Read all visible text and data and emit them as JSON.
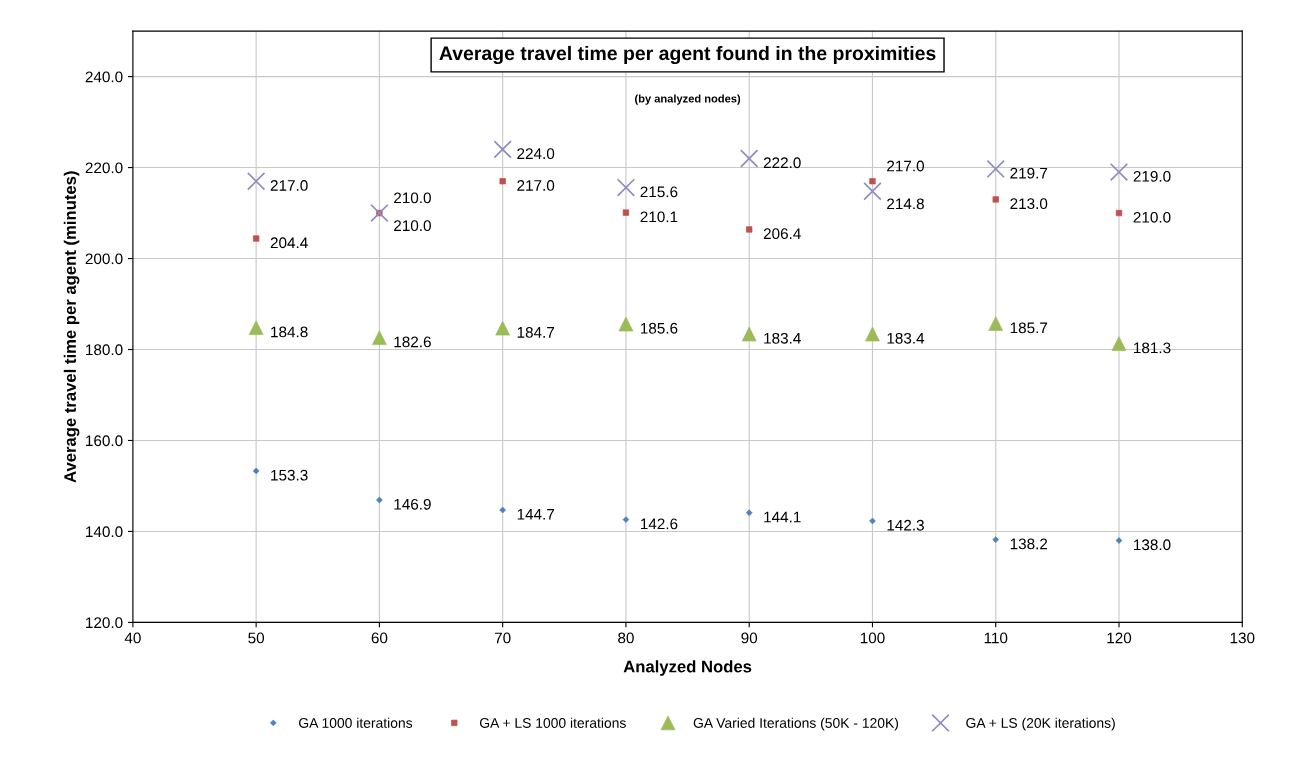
{
  "chart_data": {
    "type": "scatter",
    "title": "Average travel time per agent found in the proximities",
    "subtitle": "(by analyzed nodes)",
    "xlabel": "Analyzed Nodes",
    "ylabel": "Average travel time per agent (minutes)",
    "x": [
      50,
      60,
      70,
      80,
      90,
      100,
      110,
      120
    ],
    "series": [
      {
        "name": "GA 1000 iterations",
        "color": "#4f81bd",
        "marker": "diamond",
        "values": [
          153.3,
          146.9,
          144.7,
          142.6,
          144.1,
          142.3,
          138.2,
          138.0
        ],
        "value_labels": [
          "153.3",
          "146.9",
          "144.7",
          "142.6",
          "144.1",
          "142.3",
          "138.2",
          "138.0"
        ]
      },
      {
        "name": "GA + LS 1000 iterations",
        "color": "#c0504d",
        "marker": "square",
        "values": [
          204.4,
          210.0,
          217.0,
          210.1,
          206.4,
          217.0,
          213.0,
          210.0
        ],
        "value_labels": [
          "204.4",
          "210.0",
          "217.0",
          "210.1",
          "206.4",
          "217.0",
          "213.0",
          "210.0"
        ]
      },
      {
        "name": "GA Varied Iterations (50K - 120K)",
        "color": "#9bbb59",
        "marker": "triangle",
        "values": [
          184.8,
          182.6,
          184.7,
          185.6,
          183.4,
          183.4,
          185.7,
          181.3
        ],
        "value_labels": [
          "184.8",
          "182.6",
          "184.7",
          "185.6",
          "183.4",
          "183.4",
          "185.7",
          "181.3"
        ]
      },
      {
        "name": "GA + LS (20K iterations)",
        "color": "#8e8cc0",
        "marker": "cross",
        "values": [
          217.0,
          210.0,
          224.0,
          215.6,
          222.0,
          214.8,
          219.7,
          219.0
        ],
        "value_labels": [
          "217.0",
          "210.0",
          "224.0",
          "215.6",
          "222.0",
          "214.8",
          "219.7",
          "219.0"
        ]
      }
    ],
    "xlim": [
      40,
      130
    ],
    "xticks": [
      40,
      50,
      60,
      70,
      80,
      90,
      100,
      110,
      120,
      130
    ],
    "ylim": [
      120,
      250
    ],
    "yticks": [
      {
        "value": 120,
        "label": "120.0"
      },
      {
        "value": 140,
        "label": "140.0"
      },
      {
        "value": 160,
        "label": "160.0"
      },
      {
        "value": 180,
        "label": "180.0"
      },
      {
        "value": 200,
        "label": "200.0"
      },
      {
        "value": 220,
        "label": "220.0"
      },
      {
        "value": 240,
        "label": "240.0"
      }
    ],
    "grid": true,
    "legend": "bottom"
  }
}
